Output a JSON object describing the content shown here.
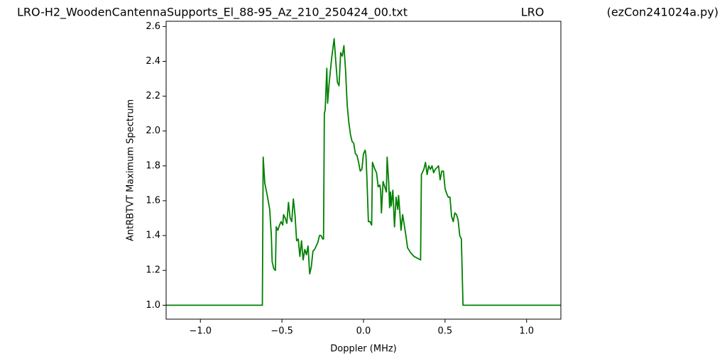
{
  "chart_data": {
    "type": "line",
    "title_parts": [
      "LRO-H2_WoodenCantennaSupports_El_88-95_Az_210_250424_00.txt",
      "LRO",
      "(ezCon241024a.py)"
    ],
    "xlabel": "Doppler (MHz)",
    "ylabel": "AntRBTVT Maximum Spectrum",
    "xlim": [
      -1.21,
      1.21
    ],
    "ylim": [
      0.92,
      2.63
    ],
    "xticks": [
      {
        "value": -1.0,
        "label": "−1.0"
      },
      {
        "value": -0.5,
        "label": "−0.5"
      },
      {
        "value": 0.0,
        "label": "0.0"
      },
      {
        "value": 0.5,
        "label": "0.5"
      },
      {
        "value": 1.0,
        "label": "1.0"
      }
    ],
    "yticks": [
      {
        "value": 1.0,
        "label": "1.0"
      },
      1.2,
      1.4,
      1.6,
      1.8,
      {
        "value": 2.0,
        "label": "2.0"
      },
      2.2,
      2.4,
      2.6
    ],
    "x": [
      -1.21,
      -0.62,
      -0.615,
      -0.605,
      -0.59,
      -0.575,
      -0.565,
      -0.56,
      -0.55,
      -0.54,
      -0.535,
      -0.525,
      -0.515,
      -0.505,
      -0.495,
      -0.49,
      -0.48,
      -0.47,
      -0.46,
      -0.45,
      -0.44,
      -0.43,
      -0.42,
      -0.41,
      -0.4,
      -0.39,
      -0.38,
      -0.37,
      -0.36,
      -0.35,
      -0.34,
      -0.33,
      -0.32,
      -0.31,
      -0.3,
      -0.29,
      -0.28,
      -0.27,
      -0.26,
      -0.25,
      -0.245,
      -0.24,
      -0.235,
      -0.225,
      -0.22,
      -0.21,
      -0.195,
      -0.18,
      -0.17,
      -0.16,
      -0.15,
      -0.14,
      -0.13,
      -0.12,
      -0.11,
      -0.1,
      -0.09,
      -0.08,
      -0.07,
      -0.06,
      -0.05,
      -0.04,
      -0.03,
      -0.02,
      -0.01,
      0.0,
      0.01,
      0.015,
      0.02,
      0.025,
      0.03,
      0.04,
      0.05,
      0.055,
      0.07,
      0.08,
      0.09,
      0.1,
      0.105,
      0.11,
      0.12,
      0.13,
      0.14,
      0.145,
      0.155,
      0.16,
      0.165,
      0.17,
      0.18,
      0.19,
      0.2,
      0.21,
      0.215,
      0.22,
      0.23,
      0.24,
      0.26,
      0.27,
      0.29,
      0.31,
      0.35,
      0.355,
      0.37,
      0.38,
      0.39,
      0.4,
      0.41,
      0.42,
      0.43,
      0.44,
      0.45,
      0.46,
      0.47,
      0.48,
      0.49,
      0.5,
      0.51,
      0.52,
      0.53,
      0.54,
      0.55,
      0.56,
      0.57,
      0.58,
      0.59,
      0.6,
      0.61,
      1.21
    ],
    "series": [
      {
        "color": "#008000",
        "values": [
          1.0,
          1.0,
          1.85,
          1.7,
          1.63,
          1.55,
          1.4,
          1.25,
          1.21,
          1.2,
          1.45,
          1.43,
          1.46,
          1.48,
          1.46,
          1.52,
          1.5,
          1.47,
          1.59,
          1.5,
          1.48,
          1.61,
          1.52,
          1.37,
          1.38,
          1.28,
          1.37,
          1.26,
          1.32,
          1.29,
          1.34,
          1.18,
          1.22,
          1.31,
          1.32,
          1.34,
          1.36,
          1.4,
          1.4,
          1.38,
          1.38,
          2.1,
          2.12,
          2.36,
          2.16,
          2.28,
          2.42,
          2.53,
          2.4,
          2.28,
          2.26,
          2.45,
          2.43,
          2.49,
          2.35,
          2.15,
          2.05,
          1.98,
          1.94,
          1.93,
          1.87,
          1.86,
          1.82,
          1.77,
          1.78,
          1.87,
          1.89,
          1.86,
          1.75,
          1.62,
          1.48,
          1.48,
          1.46,
          1.82,
          1.78,
          1.76,
          1.68,
          1.69,
          1.66,
          1.53,
          1.71,
          1.68,
          1.65,
          1.85,
          1.7,
          1.56,
          1.65,
          1.57,
          1.66,
          1.45,
          1.62,
          1.55,
          1.63,
          1.57,
          1.43,
          1.52,
          1.4,
          1.33,
          1.3,
          1.28,
          1.26,
          1.75,
          1.78,
          1.82,
          1.75,
          1.8,
          1.78,
          1.8,
          1.76,
          1.78,
          1.79,
          1.8,
          1.72,
          1.77,
          1.77,
          1.67,
          1.64,
          1.62,
          1.62,
          1.51,
          1.48,
          1.53,
          1.52,
          1.49,
          1.4,
          1.38,
          1.0,
          1.0
        ]
      }
    ]
  }
}
